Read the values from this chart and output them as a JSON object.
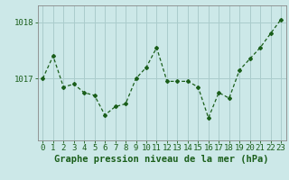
{
  "x": [
    0,
    1,
    2,
    3,
    4,
    5,
    6,
    7,
    8,
    9,
    10,
    11,
    12,
    13,
    14,
    15,
    16,
    17,
    18,
    19,
    20,
    21,
    22,
    23
  ],
  "y": [
    1017.0,
    1017.4,
    1016.85,
    1016.9,
    1016.75,
    1016.7,
    1016.35,
    1016.5,
    1016.55,
    1017.0,
    1017.2,
    1017.55,
    1016.95,
    1016.95,
    1016.95,
    1016.85,
    1016.3,
    1016.75,
    1016.65,
    1017.15,
    1017.35,
    1017.55,
    1017.8,
    1018.05
  ],
  "line_color": "#1a5e1a",
  "marker": "D",
  "marker_size": 2.0,
  "background_color": "#cce8e8",
  "grid_color": "#aacccc",
  "xlabel": "Graphe pression niveau de la mer (hPa)",
  "xlabel_fontsize": 7.5,
  "tick_label_fontsize": 6.5,
  "ylim": [
    1015.9,
    1018.3
  ],
  "xlim": [
    -0.5,
    23.5
  ],
  "yticks": [
    1017,
    1018
  ],
  "ytick_labels": [
    "1017",
    "1018"
  ]
}
